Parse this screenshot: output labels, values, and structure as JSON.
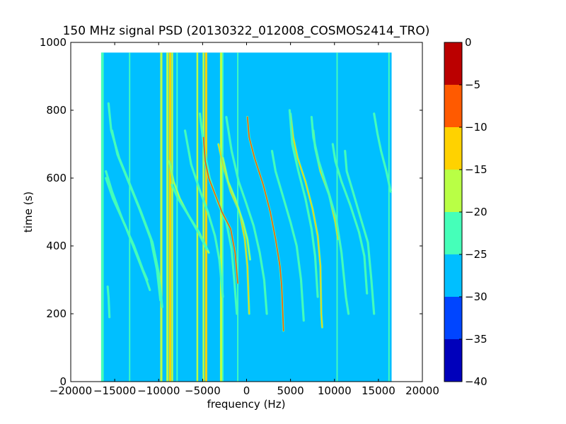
{
  "chart_data": {
    "type": "heatmap",
    "title": "150 MHz signal PSD (20130322_012008_COSMOS2414_TRO)",
    "xlabel": "frequency (Hz)",
    "ylabel": "time (s)",
    "xlim": [
      -20000,
      20000
    ],
    "ylim": [
      0,
      1000
    ],
    "xticks": [
      -20000,
      -15000,
      -10000,
      -5000,
      0,
      5000,
      10000,
      15000,
      20000
    ],
    "xtick_labels": [
      "−20000",
      "−15000",
      "−10000",
      "−5000",
      "0",
      "5000",
      "10000",
      "15000",
      "20000"
    ],
    "yticks": [
      0,
      200,
      400,
      600,
      800,
      1000
    ],
    "ytick_labels": [
      "0",
      "200",
      "400",
      "600",
      "800",
      "1000"
    ],
    "data_extent": {
      "x": [
        -16500,
        16500
      ],
      "y": [
        0,
        970
      ]
    },
    "background_level": -27,
    "colorbar": {
      "range": [
        -40,
        0
      ],
      "levels": [
        -40,
        -35,
        -30,
        -25,
        -20,
        -15,
        -10,
        -5,
        0
      ],
      "tick_labels": [
        "−40",
        "−35",
        "−30",
        "−25",
        "−20",
        "−15",
        "−10",
        "−5",
        "0"
      ],
      "colors": [
        "#0000bb",
        "#0045ff",
        "#00bfff",
        "#45ffb9",
        "#b9ff45",
        "#ffd200",
        "#ff5a00",
        "#bb0000"
      ]
    },
    "vertical_lines": [
      {
        "x": -16400,
        "level": -22,
        "width": 300
      },
      {
        "x": -13300,
        "level": -22,
        "width": 150
      },
      {
        "x": -9700,
        "level": -17,
        "width": 250
      },
      {
        "x": -9000,
        "level": -17,
        "width": 250
      },
      {
        "x": -8700,
        "level": -12,
        "width": 250
      },
      {
        "x": -8450,
        "level": -17,
        "width": 200
      },
      {
        "x": -7900,
        "level": -22,
        "width": 150
      },
      {
        "x": -5600,
        "level": -17,
        "width": 200
      },
      {
        "x": -4900,
        "level": -17,
        "width": 200
      },
      {
        "x": -4600,
        "level": -12,
        "width": 250
      },
      {
        "x": -2900,
        "level": -17,
        "width": 250
      },
      {
        "x": -2700,
        "level": -22,
        "width": 150
      },
      {
        "x": -1000,
        "level": -22,
        "width": 150
      },
      {
        "x": 10300,
        "level": -22,
        "width": 150
      },
      {
        "x": 16200,
        "level": -22,
        "width": 150
      }
    ],
    "series": [
      {
        "level": -22,
        "points": [
          [
            -16000,
            620
          ],
          [
            -15300,
            560
          ],
          [
            -14000,
            470
          ],
          [
            -12800,
            400
          ],
          [
            -11800,
            330
          ],
          [
            -11300,
            300
          ]
        ]
      },
      {
        "level": -22,
        "points": [
          [
            -16000,
            600
          ],
          [
            -15200,
            540
          ],
          [
            -13800,
            460
          ],
          [
            -12600,
            380
          ],
          [
            -11400,
            300
          ],
          [
            -11000,
            270
          ]
        ]
      },
      {
        "level": -22,
        "points": [
          [
            -15800,
            280
          ],
          [
            -15700,
            250
          ],
          [
            -15600,
            190
          ]
        ]
      },
      {
        "level": -22,
        "points": [
          [
            -15700,
            820
          ],
          [
            -15400,
            740
          ],
          [
            -14500,
            660
          ],
          [
            -13400,
            590
          ],
          [
            -12000,
            500
          ],
          [
            -10700,
            410
          ],
          [
            -10000,
            320
          ],
          [
            -9600,
            220
          ]
        ]
      },
      {
        "level": -22,
        "points": [
          [
            -15300,
            740
          ],
          [
            -14700,
            670
          ],
          [
            -13600,
            600
          ],
          [
            -12200,
            510
          ],
          [
            -10900,
            420
          ],
          [
            -10200,
            330
          ],
          [
            -9800,
            240
          ]
        ]
      },
      {
        "level": -17,
        "points": [
          [
            -8800,
            650
          ],
          [
            -8300,
            590
          ],
          [
            -7600,
            540
          ],
          [
            -6600,
            490
          ],
          [
            -5400,
            440
          ],
          [
            -4300,
            380
          ]
        ]
      },
      {
        "level": -22,
        "points": [
          [
            -8500,
            580
          ],
          [
            -7800,
            540
          ],
          [
            -6600,
            490
          ],
          [
            -5500,
            440
          ],
          [
            -4500,
            390
          ]
        ]
      },
      {
        "level": -22,
        "points": [
          [
            -7000,
            740
          ],
          [
            -6300,
            640
          ],
          [
            -5400,
            570
          ],
          [
            -4400,
            500
          ],
          [
            -3600,
            430
          ],
          [
            -3100,
            360
          ],
          [
            -2700,
            250
          ]
        ]
      },
      {
        "level": -22,
        "points": [
          [
            -5300,
            790
          ],
          [
            -4800,
            680
          ],
          [
            -4200,
            600
          ],
          [
            -3300,
            530
          ],
          [
            -2300,
            470
          ],
          [
            -1700,
            390
          ],
          [
            -1400,
            300
          ],
          [
            -1100,
            200
          ]
        ]
      },
      {
        "level": -7,
        "points": [
          [
            -4900,
            720
          ],
          [
            -4700,
            650
          ],
          [
            -4300,
            600
          ],
          [
            -3700,
            560
          ],
          [
            -2800,
            500
          ],
          [
            -1800,
            450
          ],
          [
            -1300,
            380
          ],
          [
            -1000,
            290
          ]
        ]
      },
      {
        "level": -12,
        "points": [
          [
            -3200,
            700
          ],
          [
            -2600,
            630
          ],
          [
            -1800,
            560
          ],
          [
            -800,
            500
          ],
          [
            -200,
            420
          ],
          [
            100,
            340
          ],
          [
            300,
            200
          ]
        ]
      },
      {
        "level": -17,
        "points": [
          [
            -2700,
            660
          ],
          [
            -2100,
            590
          ],
          [
            -1300,
            540
          ],
          [
            -400,
            470
          ],
          [
            100,
            420
          ],
          [
            400,
            360
          ]
        ]
      },
      {
        "level": -22,
        "points": [
          [
            -2300,
            780
          ],
          [
            -1700,
            680
          ],
          [
            -900,
            590
          ],
          [
            -100,
            530
          ],
          [
            800,
            460
          ],
          [
            1500,
            380
          ],
          [
            2000,
            300
          ],
          [
            2300,
            200
          ]
        ]
      },
      {
        "level": -7,
        "points": [
          [
            100,
            780
          ],
          [
            300,
            720
          ],
          [
            900,
            660
          ],
          [
            1900,
            580
          ],
          [
            2700,
            500
          ],
          [
            3300,
            420
          ],
          [
            3800,
            340
          ],
          [
            4000,
            280
          ],
          [
            4200,
            150
          ]
        ]
      },
      {
        "level": -22,
        "points": [
          [
            2900,
            680
          ],
          [
            3300,
            620
          ],
          [
            4100,
            550
          ],
          [
            5000,
            470
          ],
          [
            5700,
            400
          ],
          [
            6200,
            300
          ],
          [
            6500,
            180
          ]
        ]
      },
      {
        "level": -12,
        "points": [
          [
            5000,
            790
          ],
          [
            5300,
            720
          ],
          [
            5800,
            660
          ],
          [
            6700,
            590
          ],
          [
            7500,
            510
          ],
          [
            8100,
            430
          ],
          [
            8400,
            340
          ],
          [
            8500,
            200
          ],
          [
            8600,
            160
          ]
        ]
      },
      {
        "level": -22,
        "points": [
          [
            4900,
            800
          ],
          [
            5200,
            700
          ],
          [
            5900,
            620
          ],
          [
            6700,
            540
          ],
          [
            7400,
            450
          ],
          [
            7800,
            370
          ],
          [
            8100,
            250
          ]
        ]
      },
      {
        "level": -12,
        "points": [
          [
            7600,
            740
          ],
          [
            7800,
            690
          ],
          [
            8400,
            620
          ],
          [
            9400,
            550
          ],
          [
            10100,
            470
          ],
          [
            10400,
            420
          ]
        ]
      },
      {
        "level": -22,
        "points": [
          [
            7400,
            780
          ],
          [
            7600,
            720
          ],
          [
            8200,
            650
          ],
          [
            9300,
            560
          ],
          [
            10200,
            480
          ],
          [
            10800,
            380
          ],
          [
            11300,
            250
          ],
          [
            11600,
            200
          ]
        ]
      },
      {
        "level": -22,
        "points": [
          [
            9800,
            700
          ],
          [
            10100,
            650
          ],
          [
            10800,
            590
          ],
          [
            11800,
            520
          ],
          [
            12800,
            440
          ],
          [
            13400,
            370
          ],
          [
            13700,
            260
          ]
        ]
      },
      {
        "level": -22,
        "points": [
          [
            11200,
            680
          ],
          [
            11400,
            620
          ],
          [
            12100,
            560
          ],
          [
            13000,
            480
          ],
          [
            13800,
            410
          ],
          [
            14200,
            300
          ],
          [
            14500,
            200
          ]
        ]
      },
      {
        "level": -22,
        "points": [
          [
            14500,
            790
          ],
          [
            14900,
            730
          ],
          [
            15300,
            680
          ],
          [
            15900,
            620
          ],
          [
            16400,
            560
          ]
        ]
      }
    ]
  }
}
